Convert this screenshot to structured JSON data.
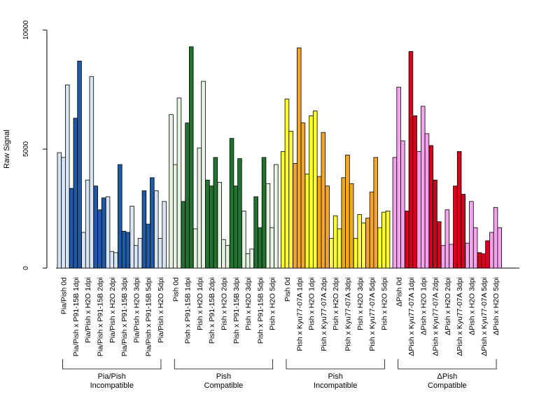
{
  "chart_data": {
    "type": "bar",
    "title": "",
    "xlabel": "",
    "ylabel": "Raw Signal",
    "ylim": [
      0,
      10000
    ],
    "yticks": [
      0,
      5000,
      10000
    ],
    "grid": false,
    "legend": "none",
    "bars_per_category": 3,
    "groups": [
      {
        "label_line1": "Pia/Pish",
        "label_line2": "Incompatible",
        "categories": [
          {
            "label": "Pia/Pish 0d",
            "color": "#d6e4f4",
            "values": [
              4850,
              4650,
              7700
            ]
          },
          {
            "label": "Pia/Pish x P91-15B 1dpi",
            "color": "#1f5aa8",
            "values": [
              3350,
              6300,
              8700
            ]
          },
          {
            "label": "Pia/Pish x H2O 1dpi",
            "color": "#d6e4f4",
            "values": [
              1500,
              3700,
              8050
            ]
          },
          {
            "label": "Pia/Pish x P91-15B 2dpi",
            "color": "#1f5aa8",
            "values": [
              3450,
              2450,
              2950
            ]
          },
          {
            "label": "Pia/Pish x H2O 2dpi",
            "color": "#d6e4f4",
            "values": [
              3000,
              700,
              650
            ]
          },
          {
            "label": "Pia/Pish x P91-15B 3dpi",
            "color": "#1f5aa8",
            "values": [
              4350,
              1550,
              1500
            ]
          },
          {
            "label": "Pia/Pish x H2O 3dpi",
            "color": "#d6e4f4",
            "values": [
              2600,
              950,
              1250
            ]
          },
          {
            "label": "Pia/Pish x P91-15B 5dpi",
            "color": "#1f5aa8",
            "values": [
              3250,
              1850,
              3800
            ]
          },
          {
            "label": "Pia/Pish x H2O 5dpi",
            "color": "#d6e4f4",
            "values": [
              3250,
              1250,
              2800
            ]
          }
        ]
      },
      {
        "label_line1": "Pish",
        "label_line2": "Compatible",
        "categories": [
          {
            "label": "Pish 0d",
            "color": "#e6f3e3",
            "values": [
              6450,
              4350,
              7150
            ]
          },
          {
            "label": "Pish x P91-15B 1dpi",
            "color": "#21742f",
            "values": [
              2800,
              6100,
              9300
            ]
          },
          {
            "label": "Pish x H2O 1dpi",
            "color": "#e6f3e3",
            "values": [
              1650,
              5050,
              7850
            ]
          },
          {
            "label": "Pish x P91-15B 2dpi",
            "color": "#21742f",
            "values": [
              3700,
              3450,
              4650
            ]
          },
          {
            "label": "Pish x H2O 2dpi",
            "color": "#e6f3e3",
            "values": [
              3600,
              1200,
              950
            ]
          },
          {
            "label": "Pish x P91-15B 3dpi",
            "color": "#21742f",
            "values": [
              5450,
              3450,
              4600
            ]
          },
          {
            "label": "Pish x H2O 3dpi",
            "color": "#e6f3e3",
            "values": [
              2400,
              600,
              800
            ]
          },
          {
            "label": "Pish x P91-15B 5dpi",
            "color": "#21742f",
            "values": [
              3000,
              1700,
              4650
            ]
          },
          {
            "label": "Pish x H2O 5dpi",
            "color": "#e6f3e3",
            "values": [
              3550,
              1700,
              4350
            ]
          }
        ]
      },
      {
        "label_line1": "Pish",
        "label_line2": "Incompatible",
        "categories": [
          {
            "label": "Pish 0d",
            "color": "#ffff33",
            "values": [
              4900,
              7100,
              5750
            ]
          },
          {
            "label": "Pish x Kyu77-07A 1dpi",
            "color": "#f5a623",
            "values": [
              4400,
              9250,
              6100
            ]
          },
          {
            "label": "Pish x H2O 1dpi",
            "color": "#ffff33",
            "values": [
              3950,
              6400,
              6600
            ]
          },
          {
            "label": "Pish x Kyu77-07A 2dpi",
            "color": "#f5a623",
            "values": [
              3850,
              5700,
              3450
            ]
          },
          {
            "label": "Pish x H2O 2dpi",
            "color": "#ffff33",
            "values": [
              1250,
              2200,
              1650
            ]
          },
          {
            "label": "Pish x Kyu77-07A 3dpi",
            "color": "#f5a623",
            "values": [
              3800,
              4750,
              3550
            ]
          },
          {
            "label": "Pish x H2O 3dpi",
            "color": "#ffff33",
            "values": [
              1250,
              2250,
              1900
            ]
          },
          {
            "label": "Pish x Kyu77-07A 5dpi",
            "color": "#f5a623",
            "values": [
              2100,
              3200,
              4650
            ]
          },
          {
            "label": "Pish x H2O 5dpi",
            "color": "#ffff33",
            "values": [
              1700,
              2350,
              2400
            ]
          }
        ]
      },
      {
        "label_line1": "ΔPish",
        "label_line2": "Compatible",
        "categories": [
          {
            "label": "ΔPish 0d",
            "color": "#f4a4ec",
            "values": [
              4650,
              7600,
              5350
            ]
          },
          {
            "label": "ΔPish x Kyu77-07A 1dpi",
            "color": "#d7001c",
            "values": [
              2400,
              9100,
              6400
            ]
          },
          {
            "label": "ΔPish x H2O 1dpi",
            "color": "#f4a4ec",
            "values": [
              4900,
              6800,
              5650
            ]
          },
          {
            "label": "ΔPish x Kyu77-07A 2dpi",
            "color": "#d7001c",
            "values": [
              5150,
              3700,
              1950
            ]
          },
          {
            "label": "ΔPish x H2O 2dpi",
            "color": "#f4a4ec",
            "values": [
              950,
              2450,
              1000
            ]
          },
          {
            "label": "ΔPish x Kyu77-07A 3dpi",
            "color": "#d7001c",
            "values": [
              3450,
              4900,
              3100
            ]
          },
          {
            "label": "ΔPish x H2O 3dpi",
            "color": "#f4a4ec",
            "values": [
              1050,
              2800,
              1700
            ]
          },
          {
            "label": "ΔPish x Kyu77-07A 5dpi",
            "color": "#d7001c",
            "values": [
              650,
              600,
              1150
            ]
          },
          {
            "label": "ΔPish x H2O 5dpi",
            "color": "#f4a4ec",
            "values": [
              1500,
              2550,
              1700
            ]
          }
        ]
      }
    ]
  }
}
